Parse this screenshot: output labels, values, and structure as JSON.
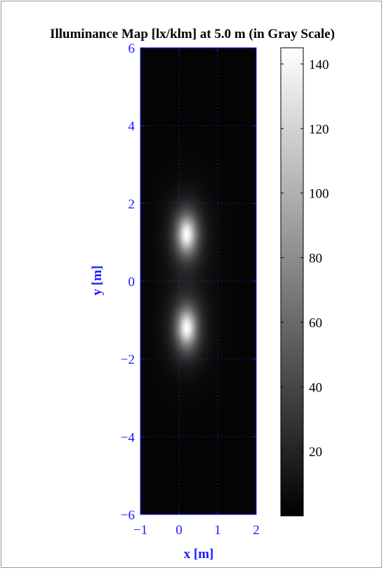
{
  "chart_data": {
    "type": "heatmap",
    "title": "Illuminance Map [lx/klm] at 5.0 m (in Gray Scale)",
    "xlabel": "x [m]",
    "ylabel": "y [m]",
    "xlim": [
      -1,
      2
    ],
    "ylim": [
      -6,
      6
    ],
    "xticks": [
      -1,
      0,
      1,
      2
    ],
    "yticks": [
      -6,
      -4,
      -2,
      0,
      2,
      4,
      6
    ],
    "grid": true,
    "colormap": "gray",
    "colorbar": {
      "range": [
        0,
        145
      ],
      "ticks": [
        20,
        40,
        60,
        80,
        100,
        120,
        140
      ]
    },
    "sources": [
      {
        "x": 0.2,
        "y": 1.2,
        "peak": 145
      },
      {
        "x": 0.2,
        "y": -1.2,
        "peak": 145
      }
    ],
    "min_value": 2,
    "max_value": 145
  },
  "colors": {
    "axis": "#1a1aff",
    "text": "#000000",
    "grid": "#2a2aff"
  }
}
